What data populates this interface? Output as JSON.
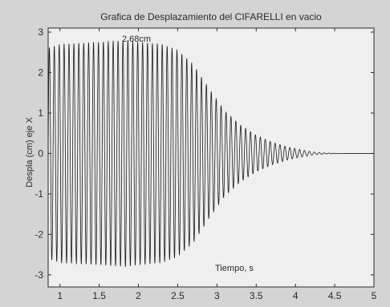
{
  "chart_data": {
    "type": "line",
    "title": "Grafica de Desplazamiento del CIFARELLI en vacio",
    "xlabel": "Tiempo, s",
    "ylabel": "Despla (cm) eje X",
    "xlim": [
      0.85,
      5.0
    ],
    "ylim": [
      -3.3,
      3.1
    ],
    "xticks": [
      "1",
      "1.5",
      "2",
      "2.5",
      "3",
      "3.5",
      "4",
      "4.5",
      "5"
    ],
    "yticks": [
      "3",
      "2",
      "1",
      "0",
      "-1",
      "-2",
      "-3"
    ],
    "grid": false,
    "legend": "none",
    "annotation": {
      "text": "2.68cm",
      "x": 1.85,
      "y": 2.68
    },
    "series": [
      {
        "color": "#1a1a1a",
        "frequency_hz": 16,
        "envelope": [
          [
            0.85,
            2.6
          ],
          [
            1.0,
            2.7
          ],
          [
            1.5,
            2.75
          ],
          [
            1.85,
            2.8
          ],
          [
            2.0,
            2.75
          ],
          [
            2.3,
            2.7
          ],
          [
            2.5,
            2.55
          ],
          [
            2.7,
            2.2
          ],
          [
            2.9,
            1.6
          ],
          [
            3.1,
            1.05
          ],
          [
            3.3,
            0.7
          ],
          [
            3.5,
            0.45
          ],
          [
            3.7,
            0.28
          ],
          [
            3.9,
            0.16
          ],
          [
            4.1,
            0.08
          ],
          [
            4.25,
            0.03
          ],
          [
            4.4,
            0.01
          ],
          [
            4.6,
            0.0
          ],
          [
            5.0,
            0.0
          ]
        ]
      }
    ]
  }
}
